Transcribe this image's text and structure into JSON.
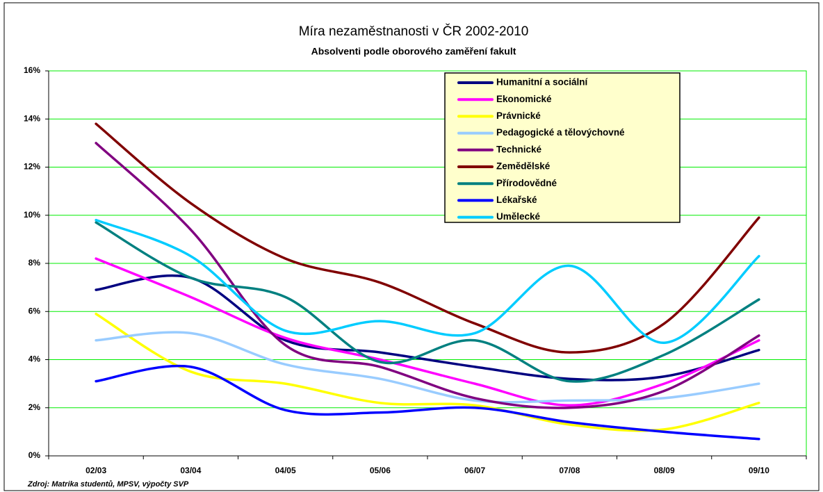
{
  "chart_data": {
    "type": "line",
    "title": "Míra nezaměstnanosti v ČR 2002-2010",
    "subtitle": "Absolventi podle oborového zaměření fakult",
    "source": "Zdroj: Matrika studentů, MPSV, výpočty SVP",
    "categories": [
      "02/03",
      "03/04",
      "04/05",
      "05/06",
      "06/07",
      "07/08",
      "08/09",
      "09/10"
    ],
    "ylim": [
      0,
      16
    ],
    "yticks": [
      {
        "value": 0,
        "label": "0%"
      },
      {
        "value": 2,
        "label": "2%"
      },
      {
        "value": 4,
        "label": "4%"
      },
      {
        "value": 6,
        "label": "6%"
      },
      {
        "value": 8,
        "label": "8%"
      },
      {
        "value": 10,
        "label": "10%"
      },
      {
        "value": 12,
        "label": "12%"
      },
      {
        "value": 14,
        "label": "14%"
      },
      {
        "value": 16,
        "label": "16%"
      }
    ],
    "grid": true,
    "legend": "top-right",
    "series": [
      {
        "name": "Humanitní a sociální",
        "color": "#000080",
        "values": [
          6.9,
          7.4,
          4.8,
          4.3,
          3.7,
          3.2,
          3.3,
          4.4
        ]
      },
      {
        "name": "Ekonomické",
        "color": "#ff00ff",
        "values": [
          8.2,
          6.6,
          4.9,
          4.0,
          3.0,
          2.1,
          3.0,
          4.8
        ]
      },
      {
        "name": "Právnické",
        "color": "#ffff00",
        "values": [
          5.9,
          3.5,
          3.0,
          2.2,
          2.1,
          1.3,
          1.1,
          2.2
        ]
      },
      {
        "name": "Pedagogické a tělovýchovné",
        "color": "#99ccff",
        "values": [
          4.8,
          5.1,
          3.8,
          3.2,
          2.3,
          2.3,
          2.4,
          3.0
        ]
      },
      {
        "name": "Technické",
        "color": "#800080",
        "values": [
          13.0,
          9.4,
          4.6,
          3.7,
          2.4,
          2.0,
          2.7,
          5.0
        ]
      },
      {
        "name": "Zemědělské",
        "color": "#800000",
        "values": [
          13.8,
          10.5,
          8.2,
          7.2,
          5.5,
          4.3,
          5.5,
          9.9
        ]
      },
      {
        "name": "Přírodovědné",
        "color": "#008080",
        "values": [
          9.7,
          7.4,
          6.6,
          3.9,
          4.8,
          3.1,
          4.2,
          6.5
        ]
      },
      {
        "name": "Lékařské",
        "color": "#0000ff",
        "values": [
          3.1,
          3.7,
          1.9,
          1.8,
          2.0,
          1.4,
          1.0,
          0.7
        ]
      },
      {
        "name": "Umělecké",
        "color": "#00ccff",
        "values": [
          9.8,
          8.3,
          5.2,
          5.6,
          5.1,
          7.9,
          4.7,
          8.3
        ]
      }
    ]
  }
}
